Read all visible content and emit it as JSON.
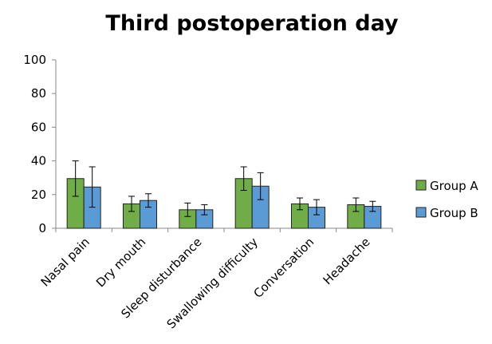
{
  "chart_data": {
    "type": "bar",
    "title": "Third postoperation day",
    "xlabel": "",
    "ylabel": "",
    "ylim": [
      0,
      100
    ],
    "yticks": [
      0,
      20,
      40,
      60,
      80,
      100
    ],
    "grid": false,
    "legend_position": "right",
    "categories": [
      "Nasal pain",
      "Dry mouth",
      "Sleep disturbance",
      "Swallowing difficulty",
      "Conversation",
      "Headache"
    ],
    "series": [
      {
        "name": "Group A",
        "color": "#70ad47",
        "values": [
          29.5,
          14.5,
          11,
          29.5,
          14.5,
          14
        ],
        "errors": [
          10.5,
          4.5,
          4,
          7,
          3.5,
          4
        ]
      },
      {
        "name": "Group B",
        "color": "#5b9bd5",
        "values": [
          24.5,
          16.5,
          11,
          25,
          12.5,
          13
        ],
        "errors": [
          12,
          4,
          3,
          8,
          4.5,
          3
        ]
      }
    ]
  }
}
